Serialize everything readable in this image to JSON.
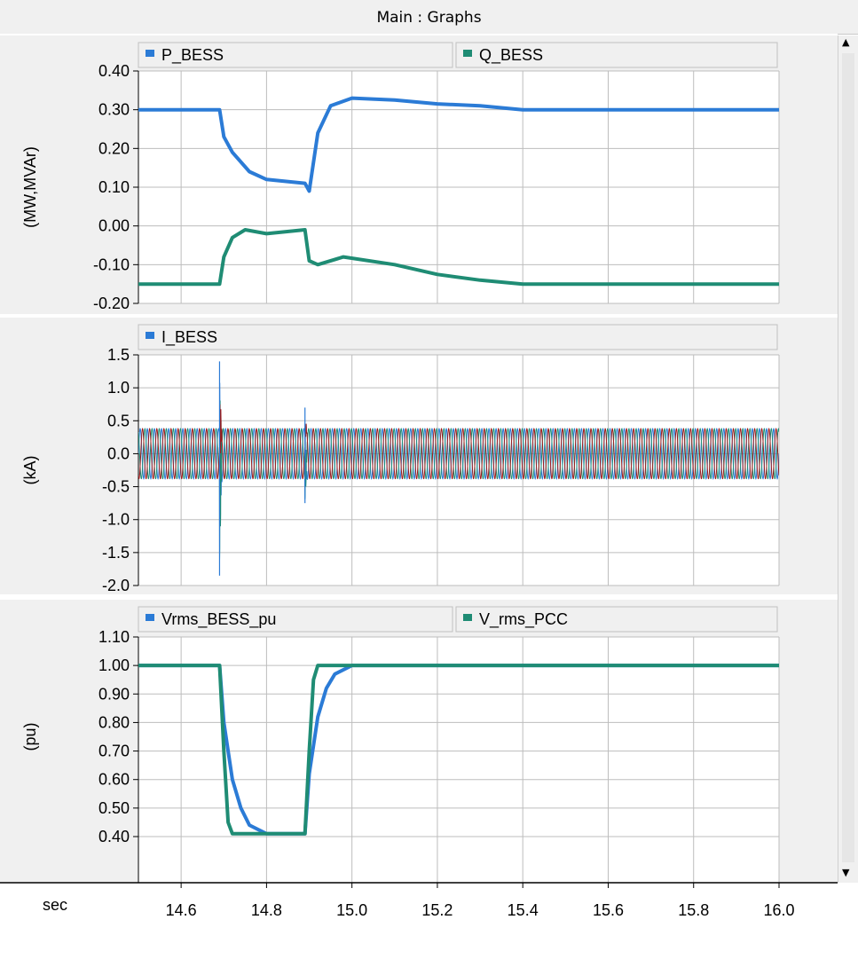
{
  "window": {
    "title": "Main : Graphs"
  },
  "chart_data": {
    "type": "line",
    "x_unit_label": "sec",
    "xlim": [
      14.5,
      16.0
    ],
    "x_ticks": [
      "14.6",
      "14.8",
      "15.0",
      "15.2",
      "15.4",
      "15.6",
      "15.8",
      "16.0"
    ],
    "grid": true,
    "panels": [
      {
        "ylabel": "(MW,MVAr)",
        "ylim": [
          -0.2,
          0.4
        ],
        "y_ticks": [
          "0.40",
          "0.30",
          "0.20",
          "0.10",
          "0.00",
          "-0.10",
          "-0.20"
        ],
        "series": [
          {
            "name": "P_BESS",
            "color": "#2b7bd6",
            "x": [
              14.5,
              14.69,
              14.7,
              14.72,
              14.76,
              14.8,
              14.89,
              14.9,
              14.92,
              14.95,
              15.0,
              15.1,
              15.2,
              15.3,
              15.4,
              16.0
            ],
            "y": [
              0.3,
              0.3,
              0.23,
              0.19,
              0.14,
              0.12,
              0.11,
              0.09,
              0.24,
              0.31,
              0.33,
              0.325,
              0.315,
              0.31,
              0.3,
              0.3
            ]
          },
          {
            "name": "Q_BESS",
            "color": "#1f8c74",
            "x": [
              14.5,
              14.69,
              14.7,
              14.72,
              14.75,
              14.8,
              14.89,
              14.9,
              14.92,
              14.98,
              15.1,
              15.2,
              15.3,
              15.4,
              16.0
            ],
            "y": [
              -0.15,
              -0.15,
              -0.08,
              -0.03,
              -0.01,
              -0.02,
              -0.01,
              -0.09,
              -0.1,
              -0.08,
              -0.1,
              -0.125,
              -0.14,
              -0.15,
              -0.15
            ]
          }
        ]
      },
      {
        "ylabel": "(kA)",
        "ylim": [
          -2.0,
          1.5
        ],
        "y_ticks": [
          "1.5",
          "1.0",
          "0.5",
          "0.0",
          "-0.5",
          "-1.0",
          "-1.5",
          "-2.0"
        ],
        "series": [
          {
            "name": "I_BESS",
            "color": "#2b7bd6",
            "waveform": {
              "type": "three-phase-sine",
              "amplitude": 0.38,
              "frequency_hz": 60,
              "phase_colors": [
                "#2b7bd6",
                "#1f8c74",
                "#9b1c1c"
              ],
              "transients": [
                {
                  "x": 14.69,
                  "max": 1.4,
                  "min": -1.85
                },
                {
                  "x": 14.89,
                  "max": 0.7,
                  "min": -0.75
                }
              ]
            }
          }
        ]
      },
      {
        "ylabel": "(pu)",
        "ylim": [
          0.3,
          1.1
        ],
        "y_ticks": [
          "1.10",
          "1.00",
          "0.90",
          "0.80",
          "0.70",
          "0.60",
          "0.50",
          "0.40"
        ],
        "series": [
          {
            "name": "Vrms_BESS_pu",
            "color": "#2b7bd6",
            "x": [
              14.5,
              14.69,
              14.7,
              14.72,
              14.74,
              14.76,
              14.8,
              14.89,
              14.9,
              14.92,
              14.94,
              14.96,
              15.0,
              16.0
            ],
            "y": [
              1.0,
              1.0,
              0.8,
              0.6,
              0.5,
              0.44,
              0.41,
              0.41,
              0.62,
              0.82,
              0.92,
              0.97,
              1.0,
              1.0
            ]
          },
          {
            "name": "V_rms_PCC",
            "color": "#1f8c74",
            "x": [
              14.5,
              14.69,
              14.7,
              14.71,
              14.72,
              14.89,
              14.9,
              14.91,
              14.92,
              16.0
            ],
            "y": [
              1.0,
              1.0,
              0.7,
              0.45,
              0.41,
              0.41,
              0.7,
              0.95,
              1.0,
              1.0
            ]
          }
        ]
      }
    ]
  }
}
